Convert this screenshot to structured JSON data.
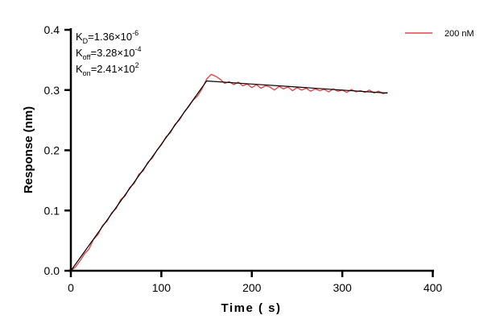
{
  "chart_data": {
    "type": "line",
    "title": "",
    "xlabel": "Time ( s)",
    "ylabel": "Response (nm)",
    "xlim": [
      0,
      400
    ],
    "ylim": [
      0,
      0.4
    ],
    "xticks": [
      "0",
      "100",
      "200",
      "300",
      "400"
    ],
    "yticks": [
      "0.0",
      "0.1",
      "0.2",
      "0.3",
      "0.4"
    ],
    "grid": false,
    "legend_position": "top-right",
    "annotations": [
      {
        "base": "K",
        "sub": "D",
        "value": "=1.36×10",
        "exp": "-6"
      },
      {
        "base": "K",
        "sub": "off",
        "value": "=3.28×10",
        "exp": "-4"
      },
      {
        "base": "K",
        "sub": "on",
        "value": "=2.41×10",
        "exp": "2"
      }
    ],
    "series": [
      {
        "name": "200 nM",
        "color": "#e0474c",
        "x": [
          0,
          5,
          10,
          15,
          20,
          25,
          30,
          35,
          40,
          45,
          50,
          55,
          60,
          65,
          70,
          75,
          80,
          85,
          90,
          95,
          100,
          105,
          110,
          115,
          120,
          125,
          130,
          135,
          140,
          145,
          150,
          155,
          160,
          165,
          170,
          175,
          180,
          185,
          190,
          195,
          200,
          205,
          210,
          215,
          220,
          225,
          230,
          235,
          240,
          245,
          250,
          255,
          260,
          265,
          270,
          275,
          280,
          285,
          290,
          295,
          300,
          305,
          310,
          315,
          320,
          325,
          330,
          335,
          340,
          345,
          350
        ],
        "y": [
          0.0,
          0.006,
          0.016,
          0.028,
          0.036,
          0.052,
          0.06,
          0.075,
          0.082,
          0.096,
          0.103,
          0.118,
          0.124,
          0.138,
          0.145,
          0.16,
          0.166,
          0.18,
          0.187,
          0.2,
          0.209,
          0.222,
          0.229,
          0.243,
          0.25,
          0.263,
          0.272,
          0.283,
          0.29,
          0.302,
          0.318,
          0.326,
          0.323,
          0.318,
          0.311,
          0.314,
          0.309,
          0.313,
          0.307,
          0.31,
          0.304,
          0.309,
          0.303,
          0.307,
          0.305,
          0.3,
          0.306,
          0.302,
          0.305,
          0.299,
          0.304,
          0.3,
          0.303,
          0.298,
          0.302,
          0.299,
          0.301,
          0.297,
          0.302,
          0.298,
          0.3,
          0.296,
          0.301,
          0.297,
          0.299,
          0.296,
          0.3,
          0.295,
          0.298,
          0.294,
          0.296
        ]
      },
      {
        "color": "#000000",
        "x": [
          0,
          150,
          200,
          250,
          300,
          350
        ],
        "y": [
          0,
          0.315,
          0.31,
          0.305,
          0.3,
          0.295
        ]
      }
    ]
  }
}
